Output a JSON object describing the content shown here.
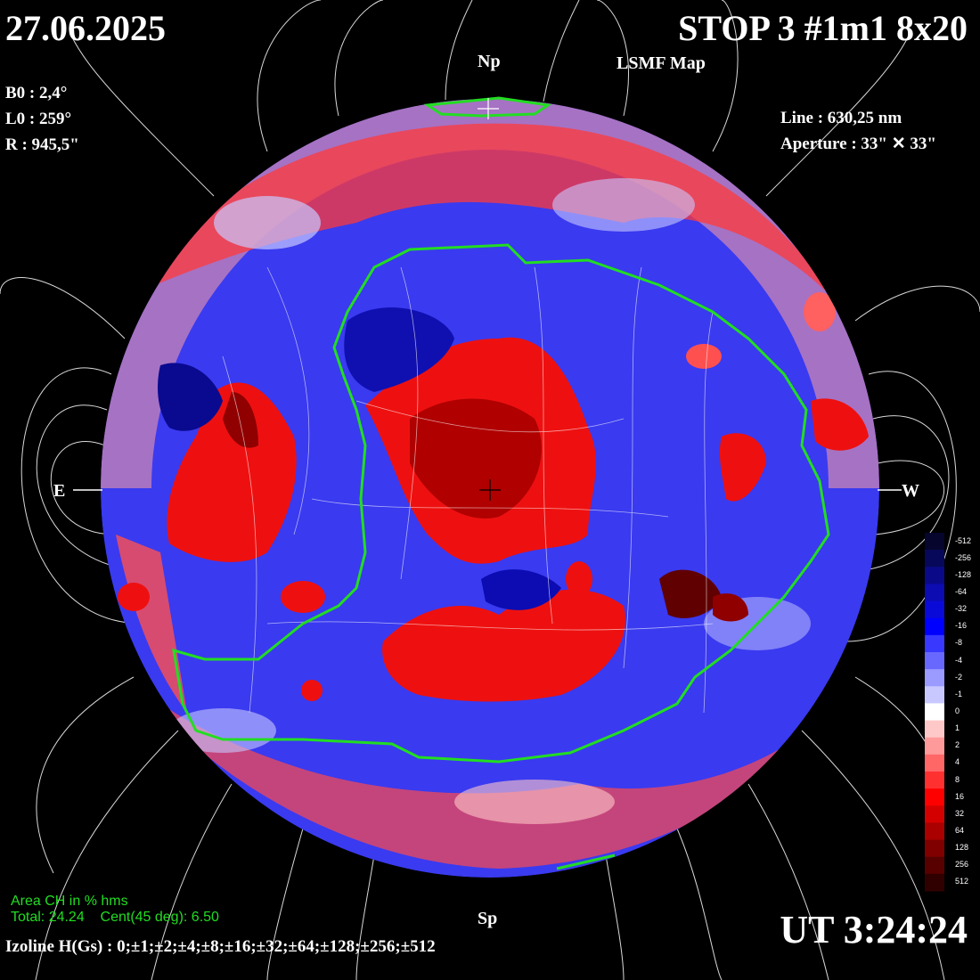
{
  "header": {
    "date": "27.06.2025",
    "title": "STOP 3 #1m1 8x20",
    "subtitle": "LSMF  Map"
  },
  "orientation": {
    "north": "Np",
    "south": "Sp",
    "east": "E",
    "west": "W"
  },
  "params": {
    "b0": "B0 : 2,4°",
    "l0": "L0 : 259°",
    "r": "R  : 945,5\""
  },
  "instrument": {
    "line": "Line :  630,25 nm",
    "aperture": "Aperture : 33\" ✕ 33\""
  },
  "coronal_holes": {
    "heading": "Area CH in % hms",
    "total": "Total: 24.24",
    "central": "Cent(45 deg): 6.50"
  },
  "time": "UT 3:24:24",
  "izoline": "Izoline H(Gs) : 0;±1;±2;±4;±8;±16;±32;±64;±128;±256;±512",
  "colorbar": {
    "labels": [
      "-512",
      "-256",
      "-128",
      "-64",
      "-32",
      "-16",
      "-8",
      "-4",
      "-2",
      "-1",
      "0",
      "1",
      "2",
      "4",
      "8",
      "16",
      "32",
      "64",
      "128",
      "256",
      "512"
    ],
    "colors": [
      "#05052e",
      "#08085a",
      "#0a0a88",
      "#0c0cb2",
      "#0a0ad8",
      "#0000ff",
      "#3838ff",
      "#6868ff",
      "#9a9aff",
      "#c8c8ff",
      "#ffffff",
      "#ffc8c8",
      "#ff9a9a",
      "#ff6666",
      "#ff3030",
      "#ff0000",
      "#d40000",
      "#aa0000",
      "#800000",
      "#580000",
      "#300000"
    ]
  },
  "colors": {
    "positive": "#ff0000",
    "negative": "#0000ff",
    "neutral": "#ffffff",
    "ch_boundary": "#22dd22",
    "background": "#000000"
  }
}
